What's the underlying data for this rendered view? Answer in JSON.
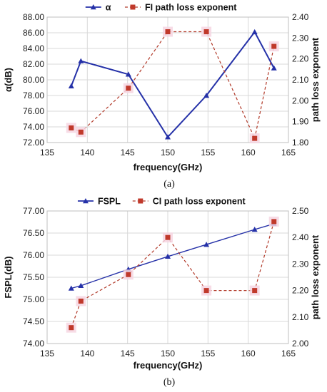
{
  "colors": {
    "blue": "#2531a8",
    "red": "#b23a2a",
    "red_marker": "#c0392b",
    "grid": "#d9d9d9"
  },
  "chart_data": [
    {
      "type": "line",
      "panel_label": "(a)",
      "xlabel": "frequency(GHz)",
      "ylabel": "α(dB)",
      "y2label": "path loss exponent",
      "xlim": [
        135,
        165
      ],
      "ylim": [
        72,
        88
      ],
      "y2lim": [
        1.8,
        2.4
      ],
      "xticks": [
        "135",
        "140",
        "145",
        "150",
        "155",
        "160",
        "165"
      ],
      "yticks": [
        "72.00",
        "74.00",
        "76.00",
        "78.00",
        "80.00",
        "82.00",
        "84.00",
        "86.00",
        "88.00"
      ],
      "y2ticks": [
        "1.80",
        "1.90",
        "2.00",
        "2.10",
        "2.20",
        "2.30",
        "2.40"
      ],
      "grid": true,
      "legend_position": "top",
      "series": [
        {
          "name": "α",
          "axis": "left",
          "style": "solid",
          "marker": "triangle",
          "x": [
            138,
            139.2,
            145.1,
            150,
            154.8,
            160.8,
            163.2
          ],
          "y": [
            79.2,
            82.4,
            80.7,
            72.7,
            78.0,
            86.1,
            81.5
          ]
        },
        {
          "name": "FI path loss exponent",
          "axis": "right",
          "style": "dashed",
          "marker": "square",
          "x": [
            138,
            139.2,
            145.1,
            150,
            154.8,
            160.8,
            163.2
          ],
          "y": [
            1.87,
            1.85,
            2.06,
            2.33,
            2.33,
            1.82,
            2.26
          ]
        }
      ]
    },
    {
      "type": "line",
      "panel_label": "(b)",
      "xlabel": "frequency(GHz)",
      "ylabel": "FSPL(dB)",
      "y2label": "path loss exponent",
      "xlim": [
        135,
        165
      ],
      "ylim": [
        74,
        77
      ],
      "y2lim": [
        2.0,
        2.5
      ],
      "xticks": [
        "135",
        "140",
        "145",
        "150",
        "155",
        "160",
        "165"
      ],
      "yticks": [
        "74.00",
        "74.50",
        "75.00",
        "75.50",
        "76.00",
        "76.50",
        "77.00"
      ],
      "y2ticks": [
        "2.00",
        "2.10",
        "2.20",
        "2.30",
        "2.40",
        "2.50"
      ],
      "grid": true,
      "legend_position": "top",
      "series": [
        {
          "name": "FSPL",
          "axis": "left",
          "style": "solid",
          "marker": "triangle",
          "x": [
            138,
            139.2,
            145.1,
            150,
            154.8,
            160.8,
            163.2
          ],
          "y": [
            75.25,
            75.31,
            75.68,
            75.97,
            76.24,
            76.58,
            76.71
          ]
        },
        {
          "name": "CI path loss exponent",
          "axis": "right",
          "style": "dashed",
          "marker": "square",
          "x": [
            138,
            139.2,
            145.1,
            150,
            154.8,
            160.8,
            163.2
          ],
          "y": [
            2.06,
            2.16,
            2.26,
            2.4,
            2.2,
            2.2,
            2.46
          ]
        }
      ]
    }
  ]
}
